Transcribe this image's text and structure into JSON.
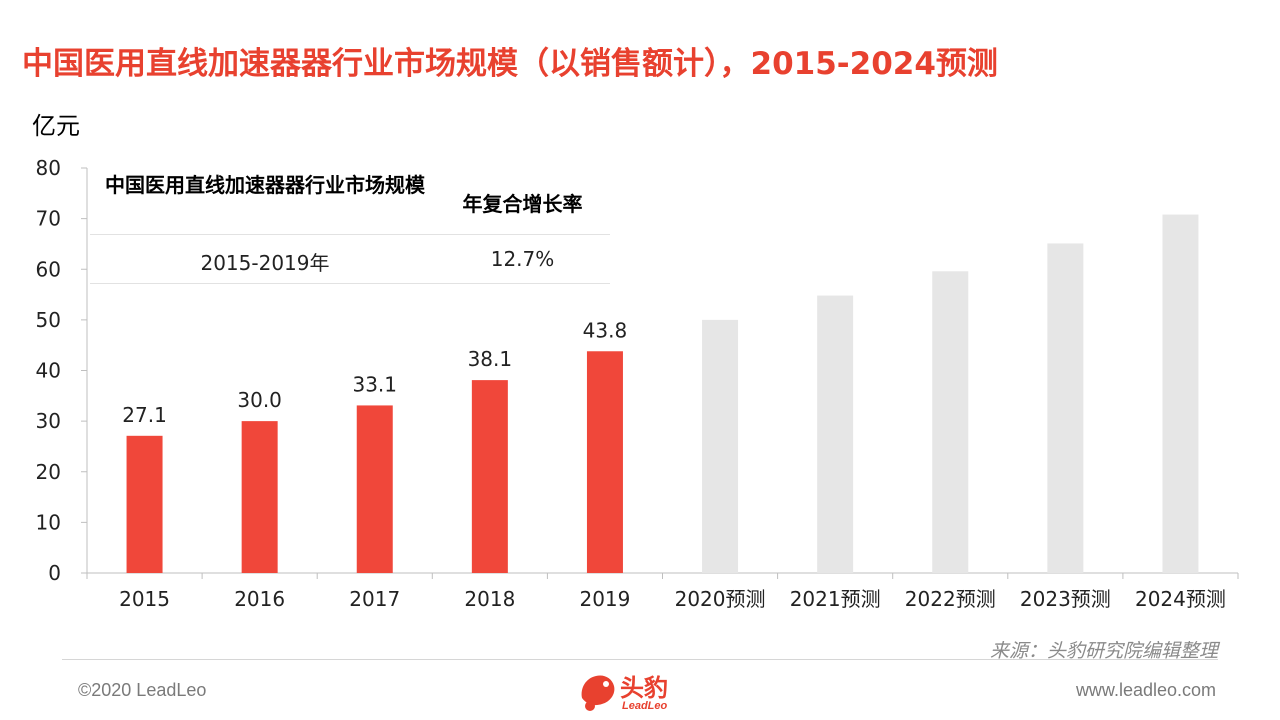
{
  "title": "中国医用直线加速器器行业市场规模（以销售额计），2015-2024预测",
  "unit_label": "亿元",
  "cagr_table": {
    "header_market": "中国医用直线加速器器行业市场规模",
    "header_cagr": "年复合增长率",
    "period": "2015-2019年",
    "value": "12.7%"
  },
  "source": "来源：头豹研究院编辑整理",
  "footer": {
    "copyright": "©2020 LeadLeo",
    "website": "www.leadleo.com",
    "logo_text": "头豹",
    "logo_sub": "LeadLeo"
  },
  "colors": {
    "actual": "#f0473a",
    "forecast": "#e6e6e6",
    "title": "#e8412f"
  },
  "chart_data": {
    "type": "bar",
    "categories": [
      "2015",
      "2016",
      "2017",
      "2018",
      "2019",
      "2020预测",
      "2021预测",
      "2022预测",
      "2023预测",
      "2024预测"
    ],
    "values": [
      27.1,
      30.0,
      33.1,
      38.1,
      43.8,
      50.0,
      54.8,
      59.6,
      65.1,
      70.8
    ],
    "data_labels": [
      "27.1",
      "30.0",
      "33.1",
      "38.1",
      "43.8",
      "",
      "",
      "",
      "",
      ""
    ],
    "series_kind": [
      "actual",
      "actual",
      "actual",
      "actual",
      "actual",
      "forecast",
      "forecast",
      "forecast",
      "forecast",
      "forecast"
    ],
    "ylabel": "亿元",
    "ylim": [
      0,
      80
    ],
    "yticks": [
      0,
      10,
      20,
      30,
      40,
      50,
      60,
      70,
      80
    ],
    "grid": false
  }
}
